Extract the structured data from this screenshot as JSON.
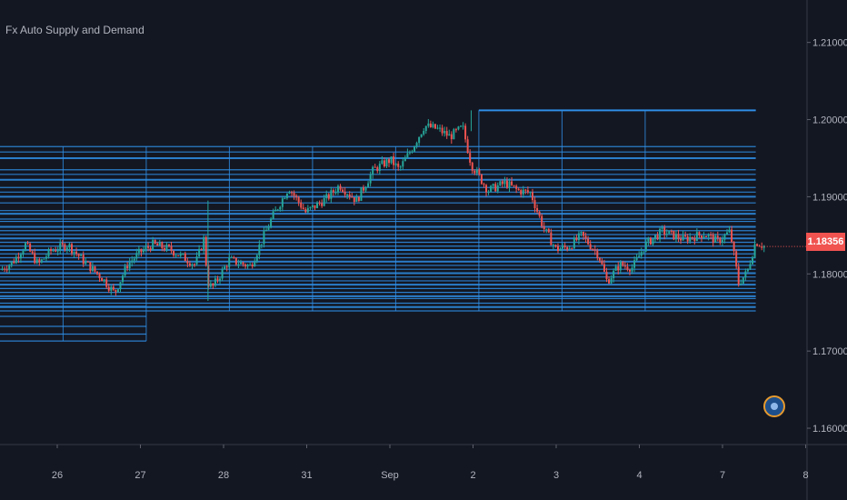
{
  "indicator": {
    "title": "Fx Auto Supply and Demand"
  },
  "price_axis": {
    "ticks": [
      "1.21000",
      "1.20000",
      "1.19000",
      "1.18000",
      "1.17000",
      "1.16000"
    ],
    "current_price_label": "1.18356"
  },
  "time_axis": {
    "ticks": [
      "26",
      "27",
      "28",
      "31",
      "Sep",
      "2",
      "3",
      "4",
      "7",
      "8"
    ]
  },
  "colors": {
    "background": "#131722",
    "grid": "#1e222d",
    "zone": "#2f8fe8",
    "candle_up": "#26a69a",
    "candle_down": "#ef5350",
    "price_badge": "#f05350",
    "axis_text": "#b2b5be"
  },
  "logo": {
    "icon": "broker-logo-icon"
  },
  "chart_data": {
    "type": "candlestick",
    "instrument": "",
    "title": "Fx Auto Supply and Demand",
    "y_ticks": [
      1.21,
      1.2,
      1.19,
      1.18,
      1.17,
      1.16
    ],
    "ylim": [
      1.158,
      1.2155
    ],
    "x_ticks": [
      "26",
      "27",
      "28",
      "31",
      "Sep",
      "2",
      "3",
      "4",
      "7",
      "8"
    ],
    "x_tick_index": [
      0.5,
      1.5,
      2.5,
      3.5,
      4.5,
      5.5,
      6.5,
      7.5,
      8.5,
      9.5
    ],
    "last_price": 1.18356,
    "grid": false,
    "price_path": [
      [
        0,
        1.1805
      ],
      [
        0.15,
        1.1815
      ],
      [
        0.3,
        1.1838
      ],
      [
        0.45,
        1.1812
      ],
      [
        0.6,
        1.183
      ],
      [
        0.8,
        1.1838
      ],
      [
        1.0,
        1.1815
      ],
      [
        1.2,
        1.1795
      ],
      [
        1.35,
        1.1775
      ],
      [
        1.5,
        1.1812
      ],
      [
        1.65,
        1.1828
      ],
      [
        1.8,
        1.1838
      ],
      [
        2.0,
        1.1832
      ],
      [
        2.3,
        1.1812
      ],
      [
        2.4,
        1.1845
      ],
      [
        2.45,
        1.1788
      ],
      [
        2.5,
        1.1782
      ],
      [
        2.7,
        1.1818
      ],
      [
        2.95,
        1.181
      ],
      [
        3.2,
        1.1872
      ],
      [
        3.4,
        1.1912
      ],
      [
        3.6,
        1.188
      ],
      [
        3.85,
        1.1898
      ],
      [
        4.0,
        1.1915
      ],
      [
        4.2,
        1.1895
      ],
      [
        4.4,
        1.1935
      ],
      [
        4.6,
        1.1948
      ],
      [
        4.7,
        1.1935
      ],
      [
        4.85,
        1.1962
      ],
      [
        5.0,
        1.1992
      ],
      [
        5.15,
        1.1988
      ],
      [
        5.3,
        1.1978
      ],
      [
        5.45,
        1.199
      ],
      [
        5.55,
        1.1942
      ],
      [
        5.75,
        1.1908
      ],
      [
        5.95,
        1.1918
      ],
      [
        6.1,
        1.1908
      ],
      [
        6.25,
        1.1905
      ],
      [
        6.4,
        1.186
      ],
      [
        6.55,
        1.1832
      ],
      [
        6.7,
        1.1835
      ],
      [
        6.85,
        1.185
      ],
      [
        7.05,
        1.1825
      ],
      [
        7.15,
        1.179
      ],
      [
        7.3,
        1.1812
      ],
      [
        7.45,
        1.1808
      ],
      [
        7.6,
        1.1838
      ],
      [
        7.8,
        1.1855
      ],
      [
        8.05,
        1.1845
      ],
      [
        8.3,
        1.1852
      ],
      [
        8.45,
        1.1842
      ],
      [
        8.6,
        1.1855
      ],
      [
        8.7,
        1.1788
      ],
      [
        8.8,
        1.1802
      ],
      [
        8.9,
        1.1842
      ],
      [
        9.0,
        1.1836
      ]
    ],
    "zone_levels": [
      1.2012,
      1.1965,
      1.1958,
      1.195,
      1.1935,
      1.1929,
      1.1922,
      1.1912,
      1.1906,
      1.19,
      1.1892,
      1.1882,
      1.1878,
      1.1871,
      1.1868,
      1.1861,
      1.1856,
      1.1851,
      1.1846,
      1.1841,
      1.1836,
      1.1831,
      1.1826,
      1.1821,
      1.1816,
      1.1811,
      1.1806,
      1.1801,
      1.1796,
      1.1791,
      1.1786,
      1.1781,
      1.1776,
      1.1771,
      1.1768,
      1.1762,
      1.1757,
      1.1752
    ],
    "lower_zone_levels": [
      1.1768,
      1.1758,
      1.1745,
      1.1732,
      1.1722,
      1.1713
    ]
  }
}
